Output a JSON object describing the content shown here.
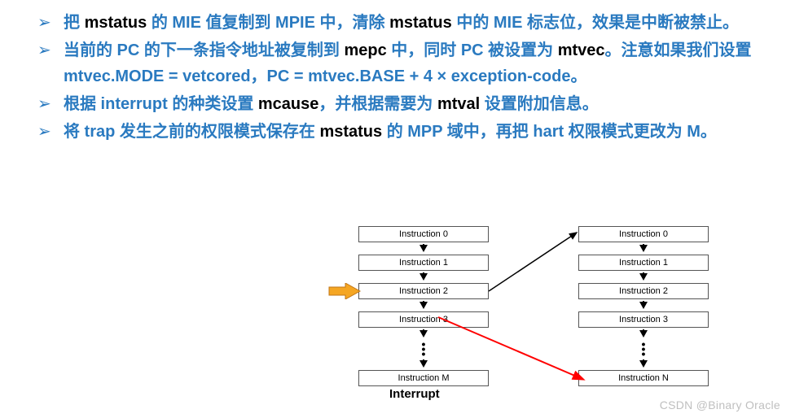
{
  "list": {
    "marker": "➢",
    "color_text": "#2a7ac0",
    "color_keyword": "#000000",
    "items": [
      {
        "segs": [
          {
            "t": "把 ",
            "k": 0
          },
          {
            "t": "mstatus",
            "k": 1
          },
          {
            "t": " 的 MIE 值复制到 MPIE 中，清除 ",
            "k": 0
          },
          {
            "t": "mstatus",
            "k": 1
          },
          {
            "t": " 中的 MIE 标志位，效果是中断被禁止。",
            "k": 0
          }
        ]
      },
      {
        "segs": [
          {
            "t": "当前的 PC 的下一条指令地址被复制到 ",
            "k": 0
          },
          {
            "t": "mepc",
            "k": 1
          },
          {
            "t": " 中，同时 PC 被设置为 ",
            "k": 0
          },
          {
            "t": "mtvec",
            "k": 1
          },
          {
            "t": "。注意如果我们设置 mtvec.MODE = vetcored，PC = mtvec.BASE + 4 × exception-code。",
            "k": 0
          }
        ]
      },
      {
        "segs": [
          {
            "t": "根据 interrupt 的种类设置 ",
            "k": 0
          },
          {
            "t": "mcause",
            "k": 1
          },
          {
            "t": "，并根据需要为 ",
            "k": 0
          },
          {
            "t": "mtval",
            "k": 1
          },
          {
            "t": " 设置附加信息。",
            "k": 0
          }
        ]
      },
      {
        "segs": [
          {
            "t": "将 trap 发生之前的权限模式保存在 ",
            "k": 0
          },
          {
            "t": "mstatus",
            "k": 1
          },
          {
            "t": " 的 MPP 域中，再把 hart 权限模式更改为 M。",
            "k": 0
          }
        ]
      }
    ]
  },
  "diagram": {
    "type": "flowchart",
    "left_column": [
      "Instruction 0",
      "Instruction 1",
      "Instruction 2",
      "Instruction 3",
      "Instruction M"
    ],
    "right_column": [
      "Instruction 0",
      "Instruction 1",
      "Instruction 2",
      "Instruction 3",
      "Instruction N"
    ],
    "caption": "Interrupt",
    "box_border": "#555555",
    "box_font_size": 11,
    "arrow_black": "#000000",
    "pointer_arrow": {
      "fill": "#f5a623",
      "stroke": "#c0771a"
    },
    "red_arrow": "#ff0000"
  },
  "watermark": "CSDN @Binary Oracle"
}
